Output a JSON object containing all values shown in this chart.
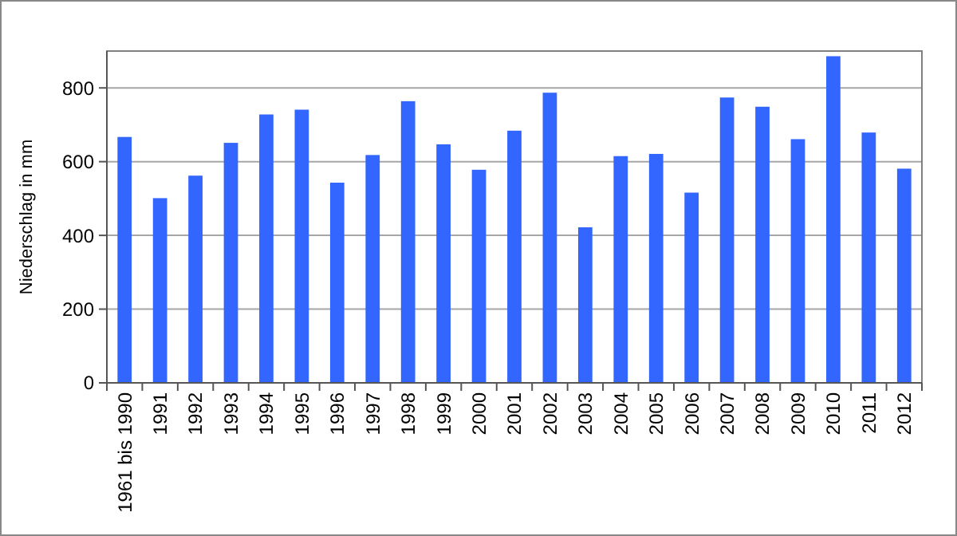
{
  "chart_data": {
    "type": "bar",
    "ylabel": "Niederschlag in mm",
    "categories": [
      "1961 bis 1990",
      "1991",
      "1992",
      "1993",
      "1994",
      "1995",
      "1996",
      "1997",
      "1998",
      "1999",
      "2000",
      "2001",
      "2002",
      "2003",
      "2004",
      "2005",
      "2006",
      "2007",
      "2008",
      "2009",
      "2010",
      "2011",
      "2012"
    ],
    "values": [
      667,
      501,
      562,
      651,
      728,
      741,
      543,
      618,
      764,
      647,
      578,
      684,
      787,
      422,
      615,
      621,
      516,
      774,
      749,
      661,
      886,
      679,
      581
    ],
    "color": "#3366ff",
    "ylim": [
      0,
      900
    ],
    "yticks": [
      0,
      200,
      400,
      600,
      800
    ],
    "grid": "y"
  }
}
